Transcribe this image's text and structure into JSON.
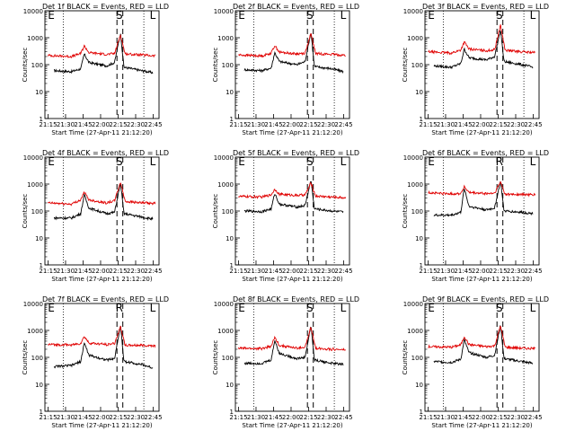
{
  "figure": {
    "xlabel": "Start Time (27-Apr-11 21:12:20)",
    "ylabel": "Counts/sec",
    "x_ticks": [
      "21:15",
      "21:30",
      "21:45",
      "22:00",
      "22:15",
      "22:30",
      "22:45"
    ],
    "y_ticks": [
      "1",
      "10",
      "100",
      "1000",
      "10000"
    ],
    "series_colors": {
      "Events": "#000000",
      "LLD": "#e00000"
    }
  },
  "chart_data": [
    {
      "type": "line",
      "title": "Det 1f BLACK = Events, RED = LLD",
      "markers": [
        "E",
        "S",
        "L"
      ],
      "xlim": [
        "21:12:20",
        "22:50"
      ],
      "ylim": [
        1,
        10000
      ],
      "yscale": "log",
      "series": [
        {
          "name": "Events",
          "points": [
            [
              "21:20",
              60
            ],
            [
              "21:35",
              55
            ],
            [
              "21:43",
              70
            ],
            [
              "21:46",
              250
            ],
            [
              "21:50",
              120
            ],
            [
              "22:05",
              90
            ],
            [
              "22:12",
              120
            ],
            [
              "22:17",
              1500
            ],
            [
              "22:20",
              80
            ],
            [
              "22:35",
              60
            ],
            [
              "22:45",
              50
            ]
          ]
        },
        {
          "name": "LLD",
          "points": [
            [
              "21:15",
              220
            ],
            [
              "21:35",
              200
            ],
            [
              "21:43",
              260
            ],
            [
              "21:46",
              500
            ],
            [
              "21:50",
              280
            ],
            [
              "22:05",
              240
            ],
            [
              "22:12",
              260
            ],
            [
              "22:17",
              1300
            ],
            [
              "22:21",
              250
            ],
            [
              "22:35",
              230
            ],
            [
              "22:47",
              210
            ]
          ]
        }
      ]
    },
    {
      "type": "line",
      "title": "Det 2f BLACK = Events, RED = LLD",
      "markers": [
        "E",
        "S",
        "L"
      ],
      "xlim": [
        "21:12:20",
        "22:50"
      ],
      "ylim": [
        1,
        10000
      ],
      "yscale": "log",
      "series": [
        {
          "name": "Events",
          "points": [
            [
              "21:20",
              65
            ],
            [
              "21:35",
              60
            ],
            [
              "21:43",
              75
            ],
            [
              "21:46",
              280
            ],
            [
              "21:50",
              130
            ],
            [
              "22:05",
              100
            ],
            [
              "22:12",
              130
            ],
            [
              "22:17",
              1600
            ],
            [
              "22:20",
              85
            ],
            [
              "22:35",
              70
            ],
            [
              "22:45",
              55
            ]
          ]
        },
        {
          "name": "LLD",
          "points": [
            [
              "21:15",
              230
            ],
            [
              "21:35",
              210
            ],
            [
              "21:43",
              270
            ],
            [
              "21:46",
              520
            ],
            [
              "21:50",
              290
            ],
            [
              "22:05",
              250
            ],
            [
              "22:12",
              270
            ],
            [
              "22:17",
              1400
            ],
            [
              "22:21",
              260
            ],
            [
              "22:35",
              240
            ],
            [
              "22:47",
              220
            ]
          ]
        }
      ]
    },
    {
      "type": "line",
      "title": "Det 3f BLACK = Events, RED = LLD",
      "markers": [
        "E",
        "S",
        "L"
      ],
      "xlim": [
        "21:12:20",
        "22:50"
      ],
      "ylim": [
        1,
        10000
      ],
      "yscale": "log",
      "series": [
        {
          "name": "Events",
          "points": [
            [
              "21:20",
              90
            ],
            [
              "21:35",
              80
            ],
            [
              "21:43",
              110
            ],
            [
              "21:46",
              380
            ],
            [
              "21:50",
              180
            ],
            [
              "22:05",
              150
            ],
            [
              "22:12",
              200
            ],
            [
              "22:17",
              2000
            ],
            [
              "22:20",
              130
            ],
            [
              "22:35",
              100
            ],
            [
              "22:45",
              80
            ]
          ]
        },
        {
          "name": "LLD",
          "points": [
            [
              "21:15",
              300
            ],
            [
              "21:35",
              270
            ],
            [
              "21:43",
              350
            ],
            [
              "21:46",
              700
            ],
            [
              "21:50",
              380
            ],
            [
              "22:05",
              330
            ],
            [
              "22:12",
              360
            ],
            [
              "22:17",
              3000
            ],
            [
              "22:21",
              340
            ],
            [
              "22:35",
              300
            ],
            [
              "22:47",
              280
            ]
          ]
        }
      ]
    },
    {
      "type": "line",
      "title": "Det 4f BLACK = Events, RED = LLD",
      "markers": [
        "E",
        "S",
        "L"
      ],
      "xlim": [
        "21:12:20",
        "22:50"
      ],
      "ylim": [
        1,
        10000
      ],
      "yscale": "log",
      "series": [
        {
          "name": "Events",
          "points": [
            [
              "21:20",
              55
            ],
            [
              "21:35",
              55
            ],
            [
              "21:43",
              80
            ],
            [
              "21:46",
              400
            ],
            [
              "21:50",
              130
            ],
            [
              "22:05",
              80
            ],
            [
              "22:12",
              90
            ],
            [
              "22:17",
              1100
            ],
            [
              "22:20",
              80
            ],
            [
              "22:35",
              60
            ],
            [
              "22:45",
              50
            ]
          ]
        },
        {
          "name": "LLD",
          "points": [
            [
              "21:15",
              200
            ],
            [
              "21:35",
              180
            ],
            [
              "21:43",
              260
            ],
            [
              "21:46",
              500
            ],
            [
              "21:50",
              260
            ],
            [
              "22:05",
              200
            ],
            [
              "22:12",
              240
            ],
            [
              "22:17",
              1200
            ],
            [
              "22:21",
              230
            ],
            [
              "22:35",
              200
            ],
            [
              "22:47",
              190
            ]
          ]
        }
      ]
    },
    {
      "type": "line",
      "title": "Det 5f BLACK = Events, RED = LLD",
      "markers": [
        "E",
        "S",
        "L"
      ],
      "xlim": [
        "21:12:20",
        "22:50"
      ],
      "ylim": [
        1,
        10000
      ],
      "yscale": "log",
      "series": [
        {
          "name": "Events",
          "points": [
            [
              "21:20",
              100
            ],
            [
              "21:35",
              95
            ],
            [
              "21:43",
              120
            ],
            [
              "21:46",
              450
            ],
            [
              "21:50",
              180
            ],
            [
              "22:05",
              140
            ],
            [
              "22:12",
              160
            ],
            [
              "22:17",
              1400
            ],
            [
              "22:20",
              120
            ],
            [
              "22:35",
              100
            ],
            [
              "22:45",
              90
            ]
          ]
        },
        {
          "name": "LLD",
          "points": [
            [
              "21:15",
              350
            ],
            [
              "21:35",
              330
            ],
            [
              "21:43",
              400
            ],
            [
              "21:46",
              650
            ],
            [
              "21:50",
              420
            ],
            [
              "22:05",
              380
            ],
            [
              "22:12",
              400
            ],
            [
              "22:17",
              1100
            ],
            [
              "22:21",
              360
            ],
            [
              "22:35",
              330
            ],
            [
              "22:47",
              310
            ]
          ]
        }
      ]
    },
    {
      "type": "line",
      "title": "Det 6f BLACK = Events, RED = LLD",
      "markers": [
        "E",
        "R",
        "L"
      ],
      "xlim": [
        "21:12:20",
        "22:50"
      ],
      "ylim": [
        1,
        10000
      ],
      "yscale": "log",
      "series": [
        {
          "name": "Events",
          "points": [
            [
              "21:20",
              70
            ],
            [
              "21:35",
              70
            ],
            [
              "21:43",
              90
            ],
            [
              "21:46",
              700
            ],
            [
              "21:50",
              150
            ],
            [
              "22:05",
              110
            ],
            [
              "22:12",
              130
            ],
            [
              "22:17",
              1300
            ],
            [
              "22:20",
              100
            ],
            [
              "22:35",
              90
            ],
            [
              "22:45",
              80
            ]
          ]
        },
        {
          "name": "LLD",
          "points": [
            [
              "21:15",
              480
            ],
            [
              "21:35",
              430
            ],
            [
              "21:43",
              450
            ],
            [
              "21:46",
              800
            ],
            [
              "21:50",
              480
            ],
            [
              "22:05",
              440
            ],
            [
              "22:12",
              460
            ],
            [
              "22:17",
              1200
            ],
            [
              "22:21",
              420
            ],
            [
              "22:35",
              410
            ],
            [
              "22:47",
              400
            ]
          ]
        }
      ]
    },
    {
      "type": "line",
      "title": "Det 7f BLACK = Events, RED = LLD",
      "markers": [
        "E",
        "R",
        "L"
      ],
      "xlim": [
        "21:12:20",
        "22:50"
      ],
      "ylim": [
        1,
        10000
      ],
      "yscale": "log",
      "series": [
        {
          "name": "Events",
          "points": [
            [
              "21:20",
              45
            ],
            [
              "21:35",
              50
            ],
            [
              "21:43",
              70
            ],
            [
              "21:46",
              350
            ],
            [
              "21:50",
              120
            ],
            [
              "22:05",
              80
            ],
            [
              "22:12",
              90
            ],
            [
              "22:17",
              1600
            ],
            [
              "22:20",
              70
            ],
            [
              "22:35",
              55
            ],
            [
              "22:45",
              40
            ]
          ]
        },
        {
          "name": "LLD",
          "points": [
            [
              "21:15",
              300
            ],
            [
              "21:35",
              290
            ],
            [
              "21:43",
              330
            ],
            [
              "21:46",
              600
            ],
            [
              "21:50",
              340
            ],
            [
              "22:05",
              300
            ],
            [
              "22:12",
              330
            ],
            [
              "22:17",
              1400
            ],
            [
              "22:21",
              280
            ],
            [
              "22:35",
              280
            ],
            [
              "22:47",
              270
            ]
          ]
        }
      ]
    },
    {
      "type": "line",
      "title": "Det 8f BLACK = Events, RED = LLD",
      "markers": [
        "E",
        "S",
        "L"
      ],
      "xlim": [
        "21:12:20",
        "22:50"
      ],
      "ylim": [
        1,
        10000
      ],
      "yscale": "log",
      "series": [
        {
          "name": "Events",
          "points": [
            [
              "21:20",
              60
            ],
            [
              "21:35",
              60
            ],
            [
              "21:43",
              80
            ],
            [
              "21:46",
              430
            ],
            [
              "21:50",
              140
            ],
            [
              "22:05",
              90
            ],
            [
              "22:12",
              100
            ],
            [
              "22:17",
              1500
            ],
            [
              "22:20",
              80
            ],
            [
              "22:35",
              60
            ],
            [
              "22:45",
              55
            ]
          ]
        },
        {
          "name": "LLD",
          "points": [
            [
              "21:15",
              220
            ],
            [
              "21:35",
              210
            ],
            [
              "21:43",
              260
            ],
            [
              "21:46",
              550
            ],
            [
              "21:50",
              280
            ],
            [
              "22:05",
              220
            ],
            [
              "22:12",
              240
            ],
            [
              "22:17",
              1300
            ],
            [
              "22:21",
              220
            ],
            [
              "22:35",
              200
            ],
            [
              "22:47",
              190
            ]
          ]
        }
      ]
    },
    {
      "type": "line",
      "title": "Det 9f BLACK = Events, RED = LLD",
      "markers": [
        "E",
        "S",
        "L"
      ],
      "xlim": [
        "21:12:20",
        "22:50"
      ],
      "ylim": [
        1,
        10000
      ],
      "yscale": "log",
      "series": [
        {
          "name": "Events",
          "points": [
            [
              "21:20",
              70
            ],
            [
              "21:35",
              65
            ],
            [
              "21:43",
              85
            ],
            [
              "21:46",
              450
            ],
            [
              "21:50",
              150
            ],
            [
              "22:05",
              100
            ],
            [
              "22:12",
              120
            ],
            [
              "22:17",
              1600
            ],
            [
              "22:20",
              90
            ],
            [
              "22:35",
              70
            ],
            [
              "22:45",
              60
            ]
          ]
        },
        {
          "name": "LLD",
          "points": [
            [
              "21:15",
              250
            ],
            [
              "21:35",
              240
            ],
            [
              "21:43",
              290
            ],
            [
              "21:46",
              600
            ],
            [
              "21:50",
              300
            ],
            [
              "22:05",
              250
            ],
            [
              "22:12",
              270
            ],
            [
              "22:17",
              1500
            ],
            [
              "22:21",
              240
            ],
            [
              "22:35",
              220
            ],
            [
              "22:47",
              210
            ]
          ]
        }
      ]
    }
  ]
}
